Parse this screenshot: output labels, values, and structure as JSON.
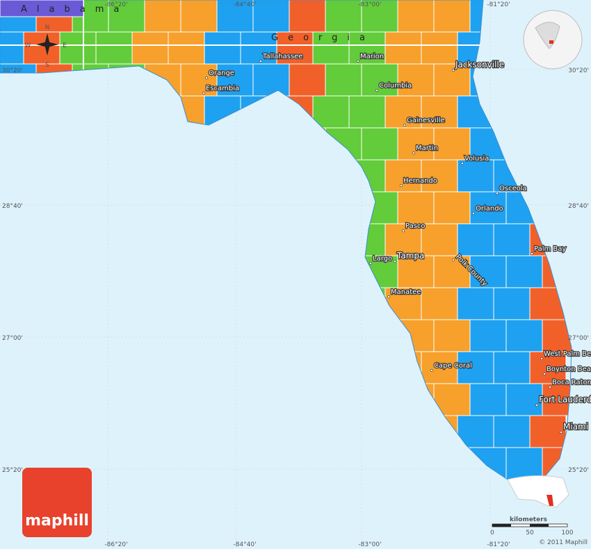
{
  "map": {
    "states": [
      "Alabama",
      "Georgia"
    ],
    "lon": [
      "-86°20'",
      "-84°40'",
      "-83°00'",
      "-81°20'"
    ],
    "lat": [
      "30°20'",
      "28°40'",
      "27°00'",
      "25°20'"
    ],
    "places": [
      "Tallahassee",
      "Orange",
      "Escambia",
      "Marion",
      "Columbia",
      "Jacksonville",
      "Gainesville",
      "Martin",
      "Volusia",
      "Hernando",
      "Osceola",
      "Orlando",
      "Pasco",
      "Polk County",
      "Tampa",
      "Largo",
      "Palm Bay",
      "Manatee",
      "West Palm Beach",
      "Boynton Beach",
      "Boca Raton",
      "Fort Lauderdale",
      "Cape Coral",
      "Miami"
    ],
    "compass": {
      "n": "N",
      "e": "E",
      "s": "S",
      "w": "W"
    },
    "scale": {
      "title": "kilometers",
      "ticks": [
        "0",
        "50",
        "100"
      ]
    },
    "copyright": "© 2011 Maphill",
    "brand": "maphill"
  }
}
